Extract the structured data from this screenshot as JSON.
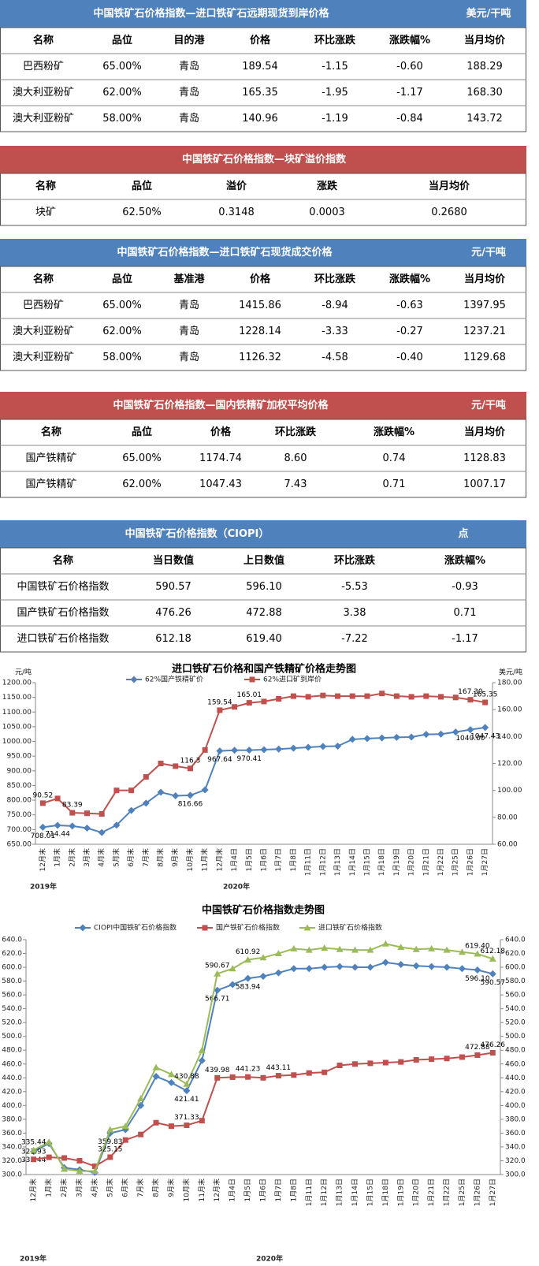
{
  "tables": [
    {
      "title": "中国铁矿石价格指数—进口铁矿石远期现货到岸价格",
      "unit": "美元/干吨",
      "color": "#4f81bd",
      "columns": [
        "名称",
        "品位",
        "目的港",
        "价格",
        "环比涨跌",
        "涨跌幅%",
        "当月均价"
      ],
      "rows": [
        [
          "巴西粉矿",
          "65.00%",
          "青岛",
          "189.54",
          "-1.15",
          "-0.60",
          "188.29"
        ],
        [
          "澳大利亚粉矿",
          "62.00%",
          "青岛",
          "165.35",
          "-1.95",
          "-1.17",
          "168.30"
        ],
        [
          "澳大利亚粉矿",
          "58.00%",
          "青岛",
          "140.96",
          "-1.19",
          "-0.84",
          "143.72"
        ]
      ]
    },
    {
      "title": "中国铁矿石价格指数—块矿溢价指数",
      "color": "#c0504d",
      "columns": [
        "名称",
        "品位",
        "溢价",
        "涨跌",
        "当月均价"
      ],
      "rows": [
        [
          "块矿",
          "62.50%",
          "0.3148",
          "0.0003",
          "0.2680"
        ]
      ]
    },
    {
      "title": "中国铁矿石价格指数—进口铁矿石现货成交价格",
      "unit": "元/干吨",
      "color": "#4f81bd",
      "columns": [
        "名称",
        "品位",
        "基准港",
        "价格",
        "环比涨跌",
        "涨跌幅%",
        "当月均价"
      ],
      "rows": [
        [
          "巴西粉矿",
          "65.00%",
          "青岛",
          "1415.86",
          "-8.94",
          "-0.63",
          "1397.95"
        ],
        [
          "澳大利亚粉矿",
          "62.00%",
          "青岛",
          "1228.14",
          "-3.33",
          "-0.27",
          "1237.21"
        ],
        [
          "澳大利亚粉矿",
          "58.00%",
          "青岛",
          "1126.32",
          "-4.58",
          "-0.40",
          "1129.68"
        ]
      ]
    },
    {
      "title": "中国铁矿石价格指数—国内铁精矿加权平均价格",
      "unit": "元/干吨",
      "color": "#c0504d",
      "columns": [
        "名称",
        "品位",
        "价格",
        "环比涨跌",
        "涨跌幅%",
        "当月均价"
      ],
      "rows": [
        [
          "国产铁精矿",
          "65.00%",
          "1174.74",
          "8.60",
          "0.74",
          "1128.83"
        ],
        [
          "国产铁精矿",
          "62.00%",
          "1047.43",
          "7.43",
          "0.71",
          "1007.17"
        ]
      ]
    },
    {
      "title": "中国铁矿石价格指数（CIOPI）",
      "unit": "点",
      "color": "#4f81bd",
      "columns": [
        "名称",
        "当日数值",
        "上日数值",
        "环比涨跌",
        "涨跌幅%"
      ],
      "rows": [
        [
          "中国铁矿石价格指数",
          "590.57",
          "596.10",
          "-5.53",
          "-0.93"
        ],
        [
          "国产铁矿石价格指数",
          "476.26",
          "472.88",
          "3.38",
          "0.71"
        ],
        [
          "进口铁矿石价格指数",
          "612.18",
          "619.40",
          "-7.22",
          "-1.17"
        ]
      ]
    }
  ],
  "chart_data": [
    {
      "type": "line",
      "title": "进口铁矿石价格和国产铁精矿价格走势图",
      "y_label": "元/吨",
      "y2_label": "美元/吨",
      "annotations": [
        "2019年",
        "2020年"
      ],
      "categories": [
        "12月末",
        "1月末",
        "2月末",
        "3月末",
        "4月末",
        "5月末",
        "6月末",
        "7月末",
        "8月末",
        "9月末",
        "10月末",
        "11月末",
        "12月末",
        "1月4日",
        "1月5日",
        "1月6日",
        "1月7日",
        "1月8日",
        "1月11日",
        "1月12日",
        "1月13日",
        "1月14日",
        "1月15日",
        "1月18日",
        "1月19日",
        "1月20日",
        "1月21日",
        "1月22日",
        "1月25日",
        "1月26日",
        "1月27日"
      ],
      "ylim": [
        650,
        1200
      ],
      "yticks": [
        {
          "value": 650,
          "label": "650.00"
        },
        {
          "value": 700,
          "label": "700.00"
        },
        {
          "value": 750,
          "label": "750.00"
        },
        {
          "value": 800,
          "label": "800.00"
        },
        {
          "value": 850,
          "label": "850.00"
        },
        {
          "value": 900,
          "label": "900.00"
        },
        {
          "value": 950,
          "label": "950.00"
        },
        {
          "value": 1000,
          "label": "1000.00"
        },
        {
          "value": 1050,
          "label": "1050.00"
        },
        {
          "value": 1100,
          "label": "1100.00"
        },
        {
          "value": 1150,
          "label": "1150.00"
        },
        {
          "value": 1200,
          "label": "1200.00"
        }
      ],
      "y2lim": [
        60,
        180
      ],
      "y2ticks": [
        {
          "value": 60,
          "label": "60.00"
        },
        {
          "value": 80,
          "label": "80.00"
        },
        {
          "value": 100,
          "label": "100.00"
        },
        {
          "value": 120,
          "label": "120.00"
        },
        {
          "value": 140,
          "label": "140.00"
        },
        {
          "value": 160,
          "label": "160.00"
        },
        {
          "value": 180,
          "label": "180.00"
        }
      ],
      "series": [
        {
          "name": "62%国产铁精矿价",
          "color": "#4f81bd",
          "marker": "diamond",
          "values": [
            708.01,
            714.44,
            712,
            705,
            690,
            715,
            765,
            790,
            827,
            815,
            816.66,
            835,
            967.64,
            970,
            970.41,
            972,
            974,
            977,
            980,
            983,
            984,
            1007,
            1010,
            1012,
            1014,
            1015,
            1024,
            1025,
            1032,
            1040.0,
            1047.43
          ],
          "value_labels": [
            "708.01",
            "714.44",
            null,
            null,
            null,
            null,
            null,
            null,
            null,
            null,
            "816.66",
            null,
            "967.64",
            null,
            "970.41",
            null,
            null,
            null,
            null,
            null,
            null,
            null,
            null,
            null,
            null,
            null,
            null,
            null,
            null,
            "1040.00",
            "1047.43"
          ]
        },
        {
          "name": "62%进口矿到岸价",
          "color": "#c0504d",
          "marker": "square",
          "axis": "y2",
          "values": [
            90.52,
            94,
            83.39,
            83,
            82.5,
            100,
            100,
            110,
            120,
            118,
            116.3,
            130,
            159.54,
            162,
            165.01,
            166,
            168,
            170,
            169.5,
            170.5,
            170,
            170,
            170,
            172,
            170,
            169.5,
            170,
            169.5,
            169,
            167.3,
            165.35
          ],
          "value_labels": [
            "90.52",
            null,
            "83.39",
            null,
            null,
            null,
            null,
            null,
            null,
            null,
            "116.3",
            null,
            "159.54",
            null,
            "165.01",
            null,
            null,
            null,
            null,
            null,
            null,
            null,
            null,
            null,
            null,
            null,
            null,
            null,
            null,
            "167.30",
            "165.35"
          ]
        }
      ]
    },
    {
      "type": "line",
      "title": "中国铁矿石价格指数走势图",
      "annotations": [
        "2019年",
        "2020年"
      ],
      "categories": [
        "12月末",
        "1月末",
        "2月末",
        "3月末",
        "4月末",
        "5月末",
        "6月末",
        "7月末",
        "8月末",
        "9月末",
        "10月末",
        "11月末",
        "12月末",
        "1月4日",
        "1月5日",
        "1月6日",
        "1月7日",
        "1月8日",
        "1月11日",
        "1月12日",
        "1月13日",
        "1月14日",
        "1月15日",
        "1月18日",
        "1月19日",
        "1月20日",
        "1月21日",
        "1月22日",
        "1月25日",
        "1月26日",
        "1月27日"
      ],
      "ylim": [
        300,
        640
      ],
      "yticks": [
        {
          "value": 300,
          "label": "300.0"
        },
        {
          "value": 320,
          "label": "320.0"
        },
        {
          "value": 340,
          "label": "340.0"
        },
        {
          "value": 360,
          "label": "360.0"
        },
        {
          "value": 380,
          "label": "380.0"
        },
        {
          "value": 400,
          "label": "400.0"
        },
        {
          "value": 420,
          "label": "420.0"
        },
        {
          "value": 440,
          "label": "440.0"
        },
        {
          "value": 460,
          "label": "460.0"
        },
        {
          "value": 480,
          "label": "480.0"
        },
        {
          "value": 500,
          "label": "500.0"
        },
        {
          "value": 520,
          "label": "520.0"
        },
        {
          "value": 540,
          "label": "540.0"
        },
        {
          "value": 560,
          "label": "560.0"
        },
        {
          "value": 580,
          "label": "580.0"
        },
        {
          "value": 600,
          "label": "600.0"
        },
        {
          "value": 620,
          "label": "620.0"
        },
        {
          "value": 640,
          "label": "640.0"
        }
      ],
      "y2lim": [
        300,
        640
      ],
      "y2ticks": [
        {
          "value": 300,
          "label": "300.0"
        },
        {
          "value": 320,
          "label": "320.0"
        },
        {
          "value": 340,
          "label": "340.0"
        },
        {
          "value": 360,
          "label": "360.0"
        },
        {
          "value": 380,
          "label": "380.0"
        },
        {
          "value": 400,
          "label": "400.0"
        },
        {
          "value": 420,
          "label": "420.0"
        },
        {
          "value": 440,
          "label": "440.0"
        },
        {
          "value": 460,
          "label": "460.0"
        },
        {
          "value": 480,
          "label": "480.0"
        },
        {
          "value": 500,
          "label": "500.0"
        },
        {
          "value": 520,
          "label": "520.0"
        },
        {
          "value": 540,
          "label": "540.0"
        },
        {
          "value": 560,
          "label": "560.0"
        },
        {
          "value": 580,
          "label": "580.0"
        },
        {
          "value": 600,
          "label": "600.0"
        },
        {
          "value": 620,
          "label": "620.0"
        },
        {
          "value": 640,
          "label": "640.0"
        }
      ],
      "series": [
        {
          "name": "CIOPI中国铁矿石价格指数",
          "color": "#4f81bd",
          "marker": "diamond",
          "values": [
            333.44,
            345,
            310,
            307,
            303,
            359.83,
            365,
            400,
            442,
            433,
            421.41,
            465,
            566.71,
            575,
            583.94,
            587,
            592,
            598,
            598,
            600,
            601,
            600,
            600,
            607,
            604,
            602,
            601,
            600,
            598,
            596.1,
            590.57
          ],
          "value_labels": [
            "333.44",
            null,
            null,
            null,
            null,
            "359.83",
            null,
            null,
            null,
            null,
            "421.41",
            null,
            "566.71",
            null,
            "583.94",
            null,
            null,
            null,
            null,
            null,
            null,
            null,
            null,
            null,
            null,
            null,
            null,
            null,
            null,
            "596.10",
            "590.57"
          ]
        },
        {
          "name": "国产铁矿石价格指数",
          "color": "#c0504d",
          "marker": "square",
          "values": [
            321.93,
            325,
            324,
            320,
            312,
            325.15,
            350,
            358,
            375,
            370,
            371.33,
            378,
            439.98,
            441,
            441.23,
            440,
            443.11,
            444,
            447,
            448,
            458,
            460,
            461,
            462,
            463,
            466,
            467,
            468,
            470,
            472.88,
            476.26
          ],
          "value_labels": [
            "321.93",
            null,
            null,
            null,
            null,
            "325.15",
            null,
            null,
            null,
            null,
            "371.33",
            null,
            "439.98",
            null,
            "441.23",
            null,
            "443.11",
            null,
            null,
            null,
            null,
            null,
            null,
            null,
            null,
            null,
            null,
            null,
            null,
            "472.88",
            "476.26"
          ]
        },
        {
          "name": "进口铁矿石价格指数",
          "color": "#9bbb59",
          "marker": "triangle",
          "values": [
            335.44,
            347,
            308,
            305,
            305,
            365,
            370,
            410,
            455,
            445,
            430.88,
            480,
            590.67,
            598,
            610.92,
            614,
            620,
            627,
            625,
            628,
            626,
            625,
            625,
            634,
            629,
            626,
            627,
            625,
            622,
            619.4,
            612.18
          ],
          "value_labels": [
            "335.44",
            null,
            null,
            null,
            null,
            null,
            null,
            null,
            null,
            null,
            "430.88",
            null,
            "590.67",
            null,
            "610.92",
            null,
            null,
            null,
            null,
            null,
            null,
            null,
            null,
            null,
            null,
            null,
            null,
            null,
            null,
            "619.40",
            "612.18"
          ]
        }
      ]
    }
  ]
}
